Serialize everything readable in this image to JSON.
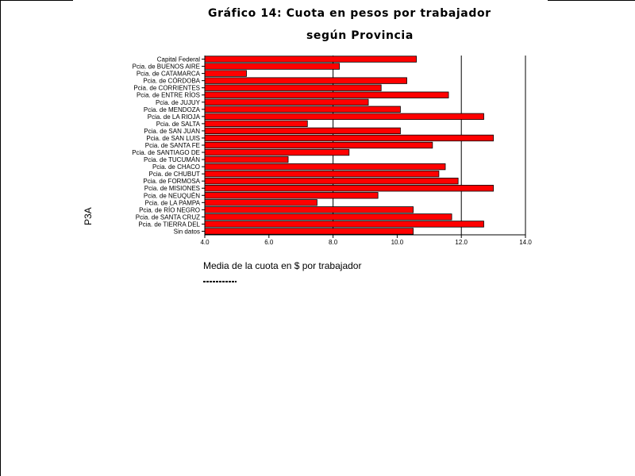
{
  "chart_data": {
    "type": "bar",
    "orientation": "horizontal",
    "title_line1": "Gráfico 14: Cuota en pesos por trabajador",
    "title_line2": "según Provincia",
    "xlabel": "Media de la cuota en $ por trabajador",
    "ylabel": "P3A",
    "xlim": [
      4.0,
      14.0
    ],
    "xticks": [
      "4.0",
      "6.0",
      "8.0",
      "10.0",
      "12.0",
      "14.0"
    ],
    "grid": "vertical lines at 8.0, 12.0, 14.0",
    "bar_color": "#ff0000",
    "categories": [
      "Capital Federal",
      "Pcia. de BUENOS AIRE",
      "Pcia. de CATAMARCA",
      "Pcia. de CÓRDOBA",
      "Pcia. de CORRIENTES",
      "Pcia. de ENTRE RÍOS",
      "Pcia. de JUJUY",
      "Pcia. de MENDOZA",
      "Pcia. de LA RIOJA",
      "Pcia. de SALTA",
      "Pcia. de SAN JUAN",
      "Pcia. de SAN LUIS",
      "Pcia. de SANTA FE",
      "Pcia. de SANTIAGO DE",
      "Pcia. de TUCUMÁN",
      "Pcia. de CHACO",
      "Pcia. de CHUBUT",
      "Pcia. de FORMOSA",
      "Pcia. de MISIONES",
      "Pcia. de NEUQUÉN",
      "Pcia. de LA PAMPA",
      "Pcia. de RÍO NEGRO",
      "Pcia. de SANTA CRUZ",
      "Pcia. de TIERRA DEL",
      "Sin datos"
    ],
    "values": [
      10.6,
      8.2,
      5.3,
      10.3,
      9.5,
      11.6,
      9.1,
      10.1,
      12.7,
      7.2,
      10.1,
      13.0,
      11.1,
      8.5,
      6.6,
      11.5,
      11.3,
      11.9,
      13.0,
      9.4,
      7.5,
      10.5,
      11.7,
      12.7,
      10.5
    ]
  }
}
